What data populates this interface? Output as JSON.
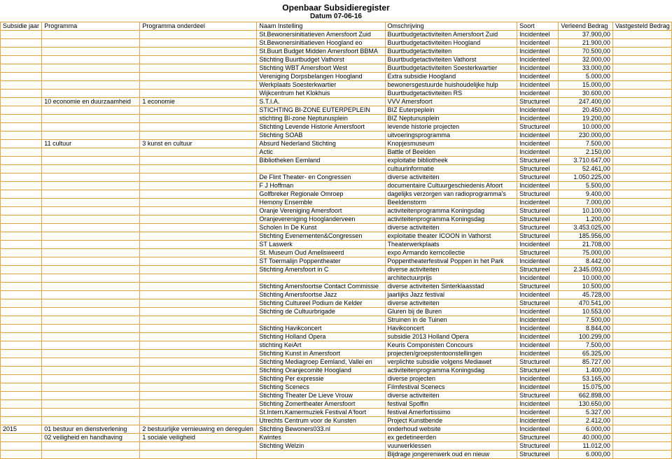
{
  "header": {
    "title": "Openbaar Subsidieregister",
    "date": "Datum 07-06-16"
  },
  "table": {
    "columns": [
      "Subsidie jaar",
      "Programma",
      "Programma onderdeel",
      "Naam Instelling",
      "Omschrijving",
      "Soort",
      "Verleend Bedrag",
      "Vastgesteld Bedrag"
    ],
    "border_color": "#e8a33d",
    "font_size": 9,
    "rows": [
      [
        "",
        "",
        "",
        "St.Bewonersinitiatieven Amersfoort Zuid",
        "Buurtbudgetactiviteiten Amersfoort Zuid",
        "Incidenteel",
        "37.900,00",
        ""
      ],
      [
        "",
        "",
        "",
        "St.Bewonersinitiatieven Hoogland eo",
        "Buurtbudgetactiviteiten Hoogland",
        "Incidenteel",
        "21.900,00",
        ""
      ],
      [
        "",
        "",
        "",
        "St.Buurt Budget Midden Amersfoort BBMA",
        "Buurtbudgetactiviteiten",
        "Incidenteel",
        "70.500,00",
        ""
      ],
      [
        "",
        "",
        "",
        "Stichting Buurtbudget Vathorst",
        "Buurtbudgetactiviteiten Vathorst",
        "Incidenteel",
        "32.000,00",
        ""
      ],
      [
        "",
        "",
        "",
        "Stichting WBT Amersfoort West",
        "Buurtbudgetactiviteiten Soesterkwartier",
        "Incidenteel",
        "33.000,00",
        ""
      ],
      [
        "",
        "",
        "",
        "Vereniging Dorpsbelangen Hoogland",
        "Extra subsidie Hoogland",
        "Incidenteel",
        "5.000,00",
        ""
      ],
      [
        "",
        "",
        "",
        "Werkplaats Soesterkwartier",
        "bewonersgestuurde huishoudelijke hulp",
        "Incidenteel",
        "15.000,00",
        ""
      ],
      [
        "",
        "",
        "",
        "Wijkcentrum het Klokhuis",
        "Buurtbudgetactiviteiten RS",
        "Incidenteel",
        "30.600,00",
        ""
      ],
      [
        "",
        "10 economie en duurzaamheid",
        "1 economie",
        "S.T.I.A.",
        "VVV Amersfoort",
        "Structureel",
        "247.400,00",
        ""
      ],
      [
        "",
        "",
        "",
        "STICHTING BI-ZONE EUTERPEPLEIN",
        "BIZ Euterpeplein",
        "Incidenteel",
        "20.450,00",
        ""
      ],
      [
        "",
        "",
        "",
        "stichting BI-zone Neptunusplein",
        "BIZ Neptunusplein",
        "Incidenteel",
        "19.200,00",
        ""
      ],
      [
        "",
        "",
        "",
        "Stichting Levende Historie Amersfoort",
        "levende historie projecten",
        "Structureel",
        "10.000,00",
        ""
      ],
      [
        "",
        "",
        "",
        "Stichting SOAB",
        "uitvoeringsprogramma",
        "Incidenteel",
        "230.000,00",
        ""
      ],
      [
        "",
        "11 cultuur",
        "3 kunst en cultuur",
        "Absurd Nederland Stichting",
        "Knopjesmuseum",
        "Incidenteel",
        "7.500,00",
        ""
      ],
      [
        "",
        "",
        "",
        "Actic",
        "Battle of Beelden",
        "Incidenteel",
        "2.150,00",
        ""
      ],
      [
        "",
        "",
        "",
        "Bibliotheken Eemland",
        "exploitatie bibliotheek",
        "Structureel",
        "3.710.647,00",
        ""
      ],
      [
        "",
        "",
        "",
        "",
        "cultuurinformatie",
        "Structureel",
        "52.461,00",
        ""
      ],
      [
        "",
        "",
        "",
        "De Flint Theater- en Congressen",
        "diverse activiteiten",
        "Structureel",
        "1.050.225,00",
        ""
      ],
      [
        "",
        "",
        "",
        "F J Hoffman",
        "documentaire Cultuurgeschiedenis Afoort",
        "Incidenteel",
        "5.500,00",
        ""
      ],
      [
        "",
        "",
        "",
        "Golfbreker Regionale Omroep",
        "dagelijks verzorgen van radioprogramma's",
        "Structureel",
        "9.400,00",
        ""
      ],
      [
        "",
        "",
        "",
        "Hemony Ensemble",
        "Beeldenstorm",
        "Incidenteel",
        "7.000,00",
        ""
      ],
      [
        "",
        "",
        "",
        "Oranje Vereniging Amersfoort",
        "activiteitenprogramma Koningsdag",
        "Structureel",
        "10.100,00",
        ""
      ],
      [
        "",
        "",
        "",
        "Oranjevereniging Hooglanderveen",
        "activiteitenprogramma Koningsdag",
        "Structureel",
        "1.200,00",
        ""
      ],
      [
        "",
        "",
        "",
        "Scholen In De Kunst",
        "diverse activiteiten",
        "Structureel",
        "3.453.025,00",
        ""
      ],
      [
        "",
        "",
        "",
        "Stichting Evenementen&Congressen",
        "exploitatie theater ICOON in Vathorst",
        "Structureel",
        "185.956,00",
        ""
      ],
      [
        "",
        "",
        "",
        "ST Laswerk",
        "Theaterwerkplaats",
        "Incidenteel",
        "21.708,00",
        ""
      ],
      [
        "",
        "",
        "",
        "St. Museum Oud Amelisweerd",
        "expo Armando kerncollectie",
        "Structureel",
        "75.000,00",
        ""
      ],
      [
        "",
        "",
        "",
        "ST Toermalijn Poppentheater",
        "Poppentheaterfestival Poppen in het Park",
        "Incidenteel",
        "8.442,00",
        ""
      ],
      [
        "",
        "",
        "",
        "Stichting Amersfoort in C",
        "diverse activiteiten",
        "Structureel",
        "2.345.093,00",
        ""
      ],
      [
        "",
        "",
        "",
        "",
        "architectuurprijs",
        "Incidenteel",
        "10.000,00",
        ""
      ],
      [
        "",
        "",
        "",
        "Stichting Amersfoortse Contact Commissie",
        "diverse activiteiten Sinterklaasstad",
        "Structureel",
        "10.500,00",
        ""
      ],
      [
        "",
        "",
        "",
        "Stichting Amersfoortse Jazz",
        "jaarlijks Jazz festival",
        "Incidenteel",
        "45.728,00",
        ""
      ],
      [
        "",
        "",
        "",
        "Stichting Cultureel Podium de Kelder",
        "diverse activiteiten",
        "Structureel",
        "470.541,00",
        ""
      ],
      [
        "",
        "",
        "",
        "Stichting de Cultuurbrigade",
        "Gluren bij de Buren",
        "Incidenteel",
        "10.553,00",
        ""
      ],
      [
        "",
        "",
        "",
        "",
        "Struinen in de Tuinen",
        "Incidenteel",
        "7.500,00",
        ""
      ],
      [
        "",
        "",
        "",
        "Stichting Havikconcert",
        "Havikconcert",
        "Incidenteel",
        "8.844,00",
        ""
      ],
      [
        "",
        "",
        "",
        "Stichting Holland Opera",
        "subsidie 2013 Holland Opera",
        "Incidenteel",
        "100.299,00",
        ""
      ],
      [
        "",
        "",
        "",
        "stichting KeiArt",
        "Keuris Componisten Concours",
        "Incidenteel",
        "7.500,00",
        ""
      ],
      [
        "",
        "",
        "",
        "Stichting Kunst in Amersfoort",
        "projecten/groepstentoonstellingen",
        "Incidenteel",
        "65.325,00",
        ""
      ],
      [
        "",
        "",
        "",
        "Stichting Mediagroep Eemland, Vallei en",
        "verplichte subsidie volgens Mediawet",
        "Structureel",
        "85.727,00",
        ""
      ],
      [
        "",
        "",
        "",
        "Stichting Oranjecomité Hoogland",
        "activiteitenprogramma Koningsdag",
        "Structureel",
        "1.400,00",
        ""
      ],
      [
        "",
        "",
        "",
        "Stichting Per expressie",
        "diverse projecten",
        "Incidenteel",
        "53.165,00",
        ""
      ],
      [
        "",
        "",
        "",
        "Stichting Scenecs",
        "Filmfestival Scenecs",
        "Incidenteel",
        "15.075,00",
        ""
      ],
      [
        "",
        "",
        "",
        "Stichting Theater De Lieve Vrouw",
        "diverse activiteiten",
        "Structureel",
        "662.898,00",
        ""
      ],
      [
        "",
        "",
        "",
        "Stichting Zomertheater Amersfoort",
        "festival Spoffin",
        "Incidenteel",
        "130.650,00",
        ""
      ],
      [
        "",
        "",
        "",
        "St.Intern.Kamermuziek Festival A'foort",
        "festival Amerfortissimo",
        "Incidenteel",
        "5.327,00",
        ""
      ],
      [
        "",
        "",
        "",
        "Utrechts Centrum voor de Kunsten",
        "Project Kunstbende",
        "Incidenteel",
        "2.412,00",
        ""
      ],
      [
        "2015",
        "01 bestuur en dienstverlening",
        "2 bestuurlijke vernieuwing en deregulen",
        "Stichting Bewoners033.nl",
        "onderhoud website",
        "Incidenteel",
        "6.000,00",
        ""
      ],
      [
        "",
        "02 veiligheid en handhaving",
        "1 sociale veiligheid",
        "Kwintes",
        "ex gedetineerden",
        "Structureel",
        "40.000,00",
        ""
      ],
      [
        "",
        "",
        "",
        "Stichting Welzin",
        "vuurwerklessen",
        "Structureel",
        "11.012,00",
        ""
      ],
      [
        "",
        "",
        "",
        "",
        "Bijdrage jongerenwerk oud en nieuw",
        "Structureel",
        "6.000,00",
        ""
      ]
    ]
  }
}
